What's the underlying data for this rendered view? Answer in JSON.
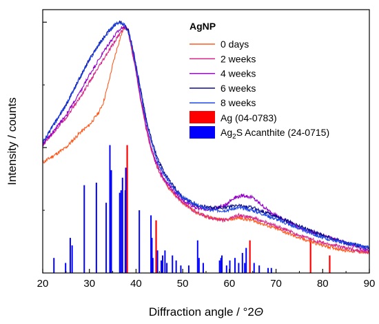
{
  "chart_data": {
    "type": "line",
    "title": "",
    "xlabel": "Diffraction angle / °2",
    "xlabel_symbol": "Θ",
    "ylabel": "Intensity / counts",
    "xlim": [
      20,
      90
    ],
    "ylim": [
      0,
      1.05
    ],
    "x_ticks": [
      20,
      30,
      40,
      50,
      60,
      70,
      80,
      90
    ],
    "y_ticks_unlabeled": true,
    "grid": false,
    "legend": {
      "title": "AgNP",
      "placement": "top-right",
      "line_entries": [
        "0 days",
        "2 weeks",
        "4 weeks",
        "6 weeks",
        "8 weeks"
      ],
      "ref_entries": [
        {
          "label": "Ag (04-0783)",
          "color": "#ff0000"
        },
        {
          "label_main": "Ag",
          "label_sub": "2",
          "label_rest": "S  Acanthite (24-0715)",
          "color": "#0000ff"
        }
      ]
    },
    "series": [
      {
        "name": "0 days",
        "color": "#ff5a1e",
        "points": [
          [
            20,
            0.44
          ],
          [
            25,
            0.5
          ],
          [
            28,
            0.56
          ],
          [
            30,
            0.59
          ],
          [
            32,
            0.64
          ],
          [
            33,
            0.68
          ],
          [
            34,
            0.75
          ],
          [
            35,
            0.83
          ],
          [
            36,
            0.9
          ],
          [
            37,
            0.96
          ],
          [
            37.6,
            0.98
          ],
          [
            38.2,
            0.97
          ],
          [
            39,
            0.9
          ],
          [
            40,
            0.8
          ],
          [
            41,
            0.69
          ],
          [
            42,
            0.59
          ],
          [
            43,
            0.51
          ],
          [
            44,
            0.45
          ],
          [
            45,
            0.4
          ],
          [
            47,
            0.34
          ],
          [
            50,
            0.28
          ],
          [
            53,
            0.24
          ],
          [
            56,
            0.22
          ],
          [
            59,
            0.21
          ],
          [
            62,
            0.22
          ],
          [
            65,
            0.21
          ],
          [
            68,
            0.19
          ],
          [
            71,
            0.17
          ],
          [
            75,
            0.14
          ],
          [
            80,
            0.11
          ],
          [
            85,
            0.09
          ],
          [
            90,
            0.08
          ]
        ]
      },
      {
        "name": "2 weeks",
        "color": "#d62a8a",
        "points": [
          [
            20,
            0.51
          ],
          [
            25,
            0.62
          ],
          [
            28,
            0.7
          ],
          [
            30,
            0.76
          ],
          [
            32,
            0.82
          ],
          [
            34,
            0.88
          ],
          [
            36,
            0.94
          ],
          [
            37.5,
            0.98
          ],
          [
            38.2,
            0.975
          ],
          [
            39,
            0.9
          ],
          [
            40,
            0.8
          ],
          [
            41,
            0.69
          ],
          [
            42,
            0.59
          ],
          [
            43,
            0.51
          ],
          [
            44,
            0.45
          ],
          [
            45,
            0.4
          ],
          [
            47,
            0.34
          ],
          [
            50,
            0.28
          ],
          [
            53,
            0.24
          ],
          [
            56,
            0.22
          ],
          [
            59,
            0.21
          ],
          [
            62,
            0.23
          ],
          [
            65,
            0.22
          ],
          [
            68,
            0.2
          ],
          [
            71,
            0.18
          ],
          [
            75,
            0.15
          ],
          [
            80,
            0.12
          ],
          [
            85,
            0.1
          ],
          [
            90,
            0.08
          ]
        ]
      },
      {
        "name": "4 weeks",
        "color": "#9400c8",
        "points": [
          [
            20,
            0.51
          ],
          [
            25,
            0.63
          ],
          [
            28,
            0.72
          ],
          [
            30,
            0.79
          ],
          [
            32,
            0.85
          ],
          [
            34,
            0.91
          ],
          [
            36,
            0.96
          ],
          [
            37.3,
            0.985
          ],
          [
            38.2,
            0.975
          ],
          [
            39,
            0.91
          ],
          [
            40,
            0.81
          ],
          [
            41,
            0.7
          ],
          [
            42,
            0.6
          ],
          [
            43,
            0.52
          ],
          [
            44,
            0.46
          ],
          [
            45,
            0.41
          ],
          [
            47,
            0.35
          ],
          [
            50,
            0.29
          ],
          [
            53,
            0.26
          ],
          [
            56,
            0.25
          ],
          [
            59,
            0.27
          ],
          [
            61,
            0.3
          ],
          [
            63,
            0.31
          ],
          [
            65,
            0.3
          ],
          [
            67,
            0.27
          ],
          [
            69,
            0.24
          ],
          [
            72,
            0.21
          ],
          [
            75,
            0.18
          ],
          [
            80,
            0.15
          ],
          [
            85,
            0.12
          ],
          [
            90,
            0.09
          ]
        ]
      },
      {
        "name": "6 weeks",
        "color": "#0a0a8c",
        "points": [
          [
            20,
            0.52
          ],
          [
            25,
            0.67
          ],
          [
            28,
            0.78
          ],
          [
            30,
            0.85
          ],
          [
            32,
            0.91
          ],
          [
            34,
            0.96
          ],
          [
            35.5,
            0.99
          ],
          [
            36.6,
            1.0
          ],
          [
            37.5,
            0.99
          ],
          [
            38.5,
            0.96
          ],
          [
            39.5,
            0.88
          ],
          [
            40.5,
            0.78
          ],
          [
            41.5,
            0.68
          ],
          [
            42.5,
            0.59
          ],
          [
            43.5,
            0.52
          ],
          [
            44.5,
            0.46
          ],
          [
            46,
            0.4
          ],
          [
            48,
            0.35
          ],
          [
            50,
            0.3
          ],
          [
            53,
            0.27
          ],
          [
            56,
            0.26
          ],
          [
            59,
            0.26
          ],
          [
            62,
            0.27
          ],
          [
            65,
            0.26
          ],
          [
            68,
            0.24
          ],
          [
            72,
            0.21
          ],
          [
            76,
            0.18
          ],
          [
            80,
            0.15
          ],
          [
            85,
            0.12
          ],
          [
            90,
            0.1
          ]
        ]
      },
      {
        "name": "8 weeks",
        "color": "#1e46e6",
        "points": [
          [
            20,
            0.52
          ],
          [
            25,
            0.67
          ],
          [
            28,
            0.78
          ],
          [
            30,
            0.85
          ],
          [
            32,
            0.91
          ],
          [
            34,
            0.96
          ],
          [
            35.5,
            0.99
          ],
          [
            36.4,
            1.0
          ],
          [
            37.5,
            0.99
          ],
          [
            38.5,
            0.95
          ],
          [
            39.5,
            0.87
          ],
          [
            40.5,
            0.77
          ],
          [
            41.5,
            0.67
          ],
          [
            42.5,
            0.58
          ],
          [
            43.5,
            0.51
          ],
          [
            44.5,
            0.45
          ],
          [
            46,
            0.39
          ],
          [
            48,
            0.34
          ],
          [
            50,
            0.3
          ],
          [
            53,
            0.27
          ],
          [
            56,
            0.25
          ],
          [
            59,
            0.25
          ],
          [
            62,
            0.26
          ],
          [
            65,
            0.25
          ],
          [
            68,
            0.23
          ],
          [
            72,
            0.2
          ],
          [
            76,
            0.17
          ],
          [
            80,
            0.14
          ],
          [
            85,
            0.12
          ],
          [
            90,
            0.1
          ]
        ]
      }
    ],
    "reference_ag": {
      "color": "#ff0000",
      "peaks": [
        [
          38.1,
          0.51
        ],
        [
          44.3,
          0.21
        ],
        [
          64.4,
          0.13
        ],
        [
          77.4,
          0.14
        ],
        [
          81.5,
          0.07
        ]
      ]
    },
    "reference_ag2s": {
      "color": "#0000ff",
      "peaks": [
        [
          22.4,
          0.06
        ],
        [
          24.9,
          0.04
        ],
        [
          25.9,
          0.14
        ],
        [
          26.3,
          0.11
        ],
        [
          28.9,
          0.35
        ],
        [
          31.5,
          0.36
        ],
        [
          33.6,
          0.28
        ],
        [
          34.4,
          0.51
        ],
        [
          34.7,
          0.41
        ],
        [
          36.5,
          0.32
        ],
        [
          36.8,
          0.33
        ],
        [
          37.1,
          0.38
        ],
        [
          37.7,
          0.33
        ],
        [
          37.8,
          0.42
        ],
        [
          40.7,
          0.25
        ],
        [
          43.2,
          0.23
        ],
        [
          43.4,
          0.14
        ],
        [
          43.6,
          0.06
        ],
        [
          44.6,
          0.09
        ],
        [
          45.4,
          0.05
        ],
        [
          45.7,
          0.07
        ],
        [
          46.2,
          0.09
        ],
        [
          46.6,
          0.04
        ],
        [
          47.8,
          0.07
        ],
        [
          48.6,
          0.05
        ],
        [
          49.6,
          0.03
        ],
        [
          51.3,
          0.03
        ],
        [
          53.2,
          0.13
        ],
        [
          53.5,
          0.06
        ],
        [
          54.4,
          0.04
        ],
        [
          57.9,
          0.05
        ],
        [
          58.2,
          0.06
        ],
        [
          58.4,
          0.07
        ],
        [
          59.4,
          0.03
        ],
        [
          60.1,
          0.05
        ],
        [
          61.2,
          0.06
        ],
        [
          62.0,
          0.04
        ],
        [
          62.8,
          0.08
        ],
        [
          63.3,
          0.04
        ],
        [
          63.6,
          0.1
        ],
        [
          65.3,
          0.04
        ],
        [
          66.4,
          0.03
        ],
        [
          68.3,
          0.02
        ],
        [
          69.0,
          0.02
        ]
      ]
    }
  }
}
